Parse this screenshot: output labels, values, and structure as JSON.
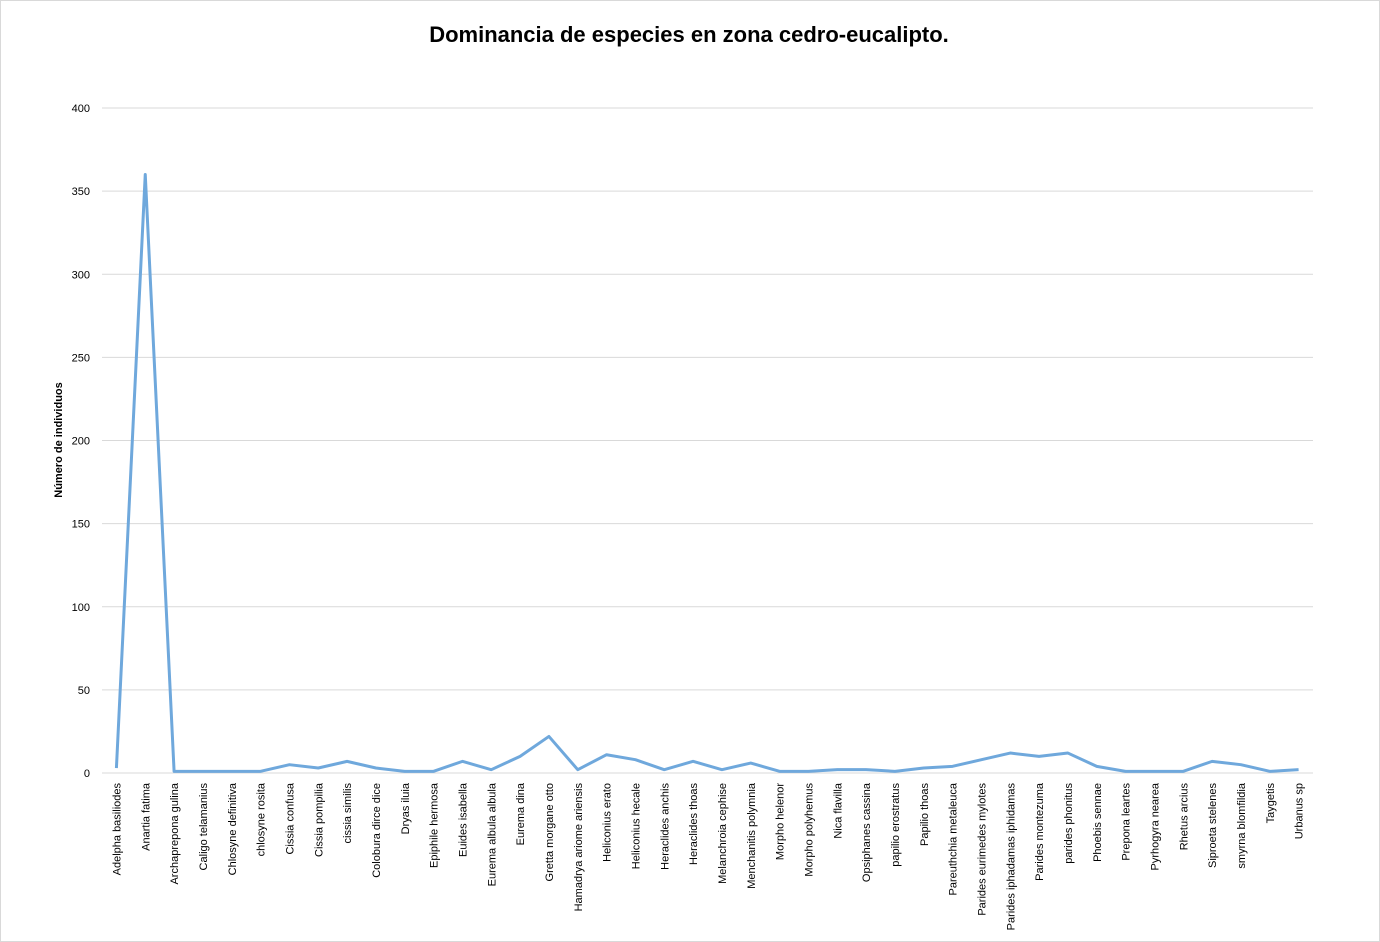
{
  "chart_data": {
    "type": "line",
    "title": "Dominancia de especies en zona cedro-eucalipto.",
    "y_label": "Número de individuos",
    "categories": [
      "Adelpha basiliodes",
      "Anartia fatima",
      "Archaprepona gulina",
      "Caligo telamanius",
      "Chlosyne definitiva",
      "chlosyne rosita",
      "Cissia confusa",
      "Cissia pompilia",
      "cissia similis",
      "Colobura dirce dice",
      "Dryas iluia",
      "Epiphile hermosa",
      "Euides isabella",
      "Eurema albula albula",
      "Eurema dina",
      "Gretta morgane otto",
      "Hamadrya ariome ariensis",
      "Heliconius erato",
      "Heliconius hecale",
      "Heraclides anchis",
      "Heraclides thoas",
      "Melanchroia cephise",
      "Menchanitis polymnia",
      "Morpho helenor",
      "Morpho polyhemus",
      "Nica flavilla",
      "Opsiphanes cassina",
      "papilio erostratus",
      "Papilio thoas",
      "Pareuthchia metaleuca",
      "Parides eurimedes mylotes",
      "Parides iphadamas iphidamas",
      "Parides montezuma",
      "parides phonitus",
      "Phoebis sennae",
      "Prepona leartes",
      "Pyrhogyra nearea",
      "Rhetus arcius",
      "Siproeta stelenes",
      "smyrna blomfildia",
      "Taygetis",
      "Urbanus  sp"
    ],
    "values": [
      3,
      360,
      1,
      1,
      1,
      1,
      5,
      3,
      7,
      3,
      1,
      1,
      7,
      2,
      10,
      22,
      2,
      11,
      8,
      2,
      7,
      2,
      6,
      1,
      1,
      2,
      2,
      1,
      3,
      4,
      8,
      12,
      10,
      12,
      4,
      1,
      1,
      1,
      7,
      5,
      1,
      2
    ],
    "color": "#6fa8dc",
    "ylim": [
      0,
      400
    ],
    "yticks": [
      0,
      50,
      100,
      150,
      200,
      250,
      300,
      350,
      400
    ],
    "grid": true
  }
}
